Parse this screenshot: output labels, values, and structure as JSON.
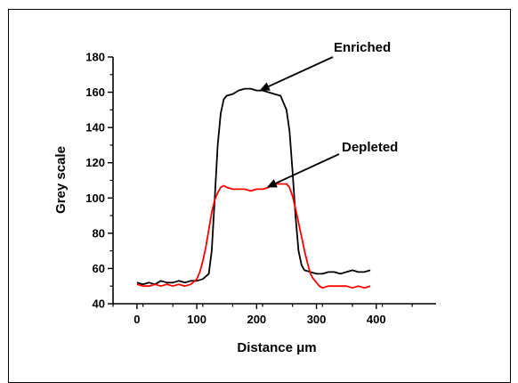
{
  "chart_data": {
    "type": "line",
    "xlabel": "Distance μm",
    "ylabel": "Grey scale",
    "xlim": [
      -40,
      500
    ],
    "ylim": [
      40,
      180
    ],
    "x_ticks": [
      0,
      100,
      200,
      300,
      400
    ],
    "y_ticks": [
      40,
      60,
      80,
      100,
      120,
      140,
      160,
      180
    ],
    "grid": false,
    "annotations": [
      {
        "text": "Enriched",
        "points_to_series": "black",
        "target": [
          205,
          161
        ]
      },
      {
        "text": "Depleted",
        "points_to_series": "red",
        "target": [
          217,
          106
        ]
      }
    ],
    "series": [
      {
        "color": "#000000",
        "x": [
          0,
          10,
          20,
          30,
          40,
          50,
          60,
          70,
          80,
          90,
          100,
          110,
          120,
          125,
          130,
          135,
          140,
          145,
          150,
          160,
          170,
          180,
          190,
          200,
          210,
          220,
          230,
          240,
          250,
          255,
          260,
          265,
          270,
          275,
          280,
          290,
          300,
          310,
          320,
          330,
          340,
          350,
          360,
          370,
          380,
          390
        ],
        "y": [
          52,
          51,
          52,
          51,
          53,
          52,
          52,
          53,
          52,
          53,
          53,
          54,
          57,
          70,
          100,
          130,
          148,
          156,
          158,
          159,
          161,
          162,
          162,
          161,
          161,
          160,
          159,
          158,
          150,
          138,
          115,
          90,
          70,
          62,
          59,
          58,
          57,
          57,
          58,
          58,
          57,
          58,
          59,
          58,
          58,
          59
        ]
      },
      {
        "color": "#ff0000",
        "x": [
          0,
          10,
          20,
          30,
          40,
          50,
          60,
          70,
          80,
          90,
          100,
          105,
          110,
          115,
          120,
          125,
          130,
          135,
          140,
          145,
          150,
          160,
          170,
          180,
          190,
          200,
          210,
          220,
          230,
          240,
          250,
          255,
          260,
          265,
          270,
          275,
          280,
          285,
          290,
          295,
          300,
          305,
          310,
          320,
          330,
          340,
          350,
          360,
          370,
          380,
          390
        ],
        "y": [
          51,
          50,
          50,
          51,
          50,
          51,
          50,
          51,
          50,
          51,
          54,
          58,
          64,
          72,
          82,
          92,
          99,
          103,
          106,
          107,
          106,
          105,
          105,
          105,
          104,
          105,
          105,
          106,
          108,
          108,
          108,
          106,
          101,
          94,
          86,
          78,
          70,
          63,
          57,
          54,
          52,
          50,
          49,
          50,
          50,
          50,
          50,
          49,
          50,
          49,
          50
        ]
      }
    ]
  }
}
